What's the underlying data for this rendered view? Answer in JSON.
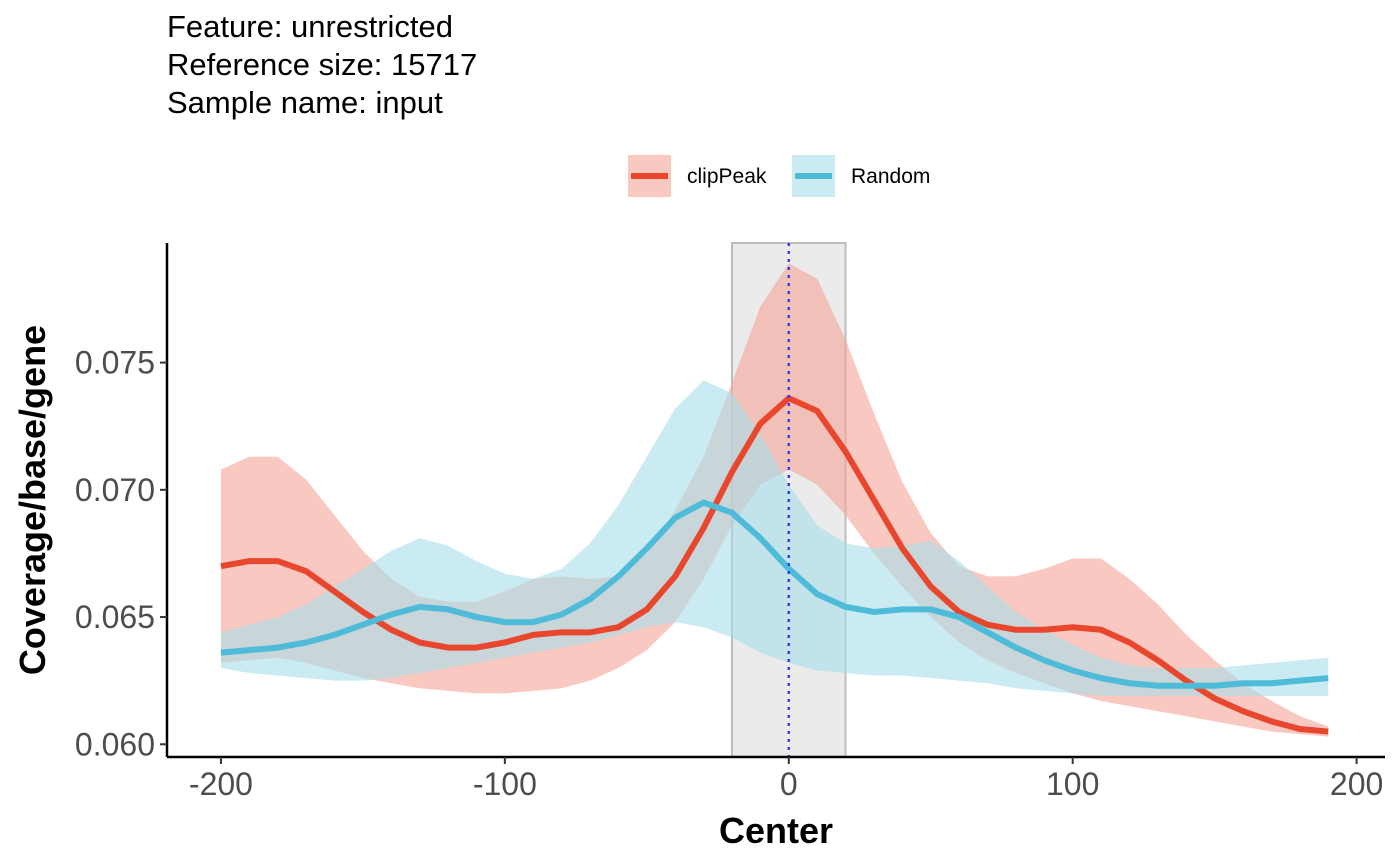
{
  "title_lines": [
    "Feature: unrestricted",
    "Reference size: 15717",
    "Sample name: input"
  ],
  "chart_data": {
    "type": "line",
    "xlabel": "Center",
    "ylabel": "Coverage/base/gene",
    "xlim": [
      -219,
      210
    ],
    "ylim": [
      0.0595,
      0.0797
    ],
    "x_ticks": [
      -200,
      -100,
      0,
      100,
      200
    ],
    "x_tick_labels": [
      "-200",
      "-100",
      "0",
      "100",
      "200"
    ],
    "y_ticks": [
      0.06,
      0.065,
      0.07,
      0.075
    ],
    "y_tick_labels": [
      "0.060",
      "0.065",
      "0.070",
      "0.075"
    ],
    "grid": false,
    "legend_position": "top",
    "center_region": [
      -20,
      20
    ],
    "center_line": 0,
    "x": [
      -200,
      -190,
      -180,
      -170,
      -160,
      -150,
      -140,
      -130,
      -120,
      -110,
      -100,
      -90,
      -80,
      -70,
      -60,
      -50,
      -40,
      -30,
      -20,
      -10,
      0,
      10,
      20,
      30,
      40,
      50,
      60,
      70,
      80,
      90,
      100,
      110,
      120,
      130,
      140,
      150,
      160,
      170,
      180,
      190
    ],
    "series": [
      {
        "name": "clipPeak",
        "color": "#E8472E",
        "band_color": "#F4A397",
        "values": [
          0.067,
          0.0672,
          0.0672,
          0.0668,
          0.066,
          0.0652,
          0.0645,
          0.064,
          0.0638,
          0.0638,
          0.064,
          0.0643,
          0.0644,
          0.0644,
          0.0646,
          0.0653,
          0.0666,
          0.0685,
          0.0707,
          0.0726,
          0.0736,
          0.0731,
          0.0715,
          0.0696,
          0.0677,
          0.0662,
          0.0652,
          0.0647,
          0.0645,
          0.0645,
          0.0646,
          0.0645,
          0.064,
          0.0633,
          0.0625,
          0.0618,
          0.0613,
          0.0609,
          0.0606,
          0.0605
        ],
        "lower": [
          0.0632,
          0.0633,
          0.0634,
          0.0632,
          0.0629,
          0.0626,
          0.0624,
          0.0622,
          0.0621,
          0.062,
          0.062,
          0.0621,
          0.0622,
          0.0625,
          0.063,
          0.0637,
          0.0648,
          0.0665,
          0.0686,
          0.0702,
          0.0708,
          0.0702,
          0.069,
          0.0675,
          0.0662,
          0.065,
          0.064,
          0.0633,
          0.0628,
          0.0624,
          0.062,
          0.0617,
          0.0615,
          0.0613,
          0.0611,
          0.0609,
          0.0607,
          0.0605,
          0.0604,
          0.0603
        ],
        "upper": [
          0.0708,
          0.0713,
          0.0713,
          0.0704,
          0.069,
          0.0676,
          0.0665,
          0.0658,
          0.0656,
          0.0656,
          0.066,
          0.0665,
          0.0666,
          0.0665,
          0.0666,
          0.0675,
          0.0692,
          0.0713,
          0.0742,
          0.0772,
          0.0789,
          0.0783,
          0.0759,
          0.073,
          0.0703,
          0.0683,
          0.067,
          0.0666,
          0.0666,
          0.0669,
          0.0673,
          0.0673,
          0.0665,
          0.0655,
          0.0643,
          0.0633,
          0.0624,
          0.0617,
          0.0611,
          0.0607
        ]
      },
      {
        "name": "Random",
        "color": "#4EBBD8",
        "band_color": "#A8DDEA",
        "values": [
          0.0636,
          0.0637,
          0.0638,
          0.064,
          0.0643,
          0.0647,
          0.0651,
          0.0654,
          0.0653,
          0.065,
          0.0648,
          0.0648,
          0.0651,
          0.0657,
          0.0666,
          0.0677,
          0.0689,
          0.0695,
          0.0691,
          0.0681,
          0.0669,
          0.0659,
          0.0654,
          0.0652,
          0.0653,
          0.0653,
          0.065,
          0.0644,
          0.0638,
          0.0633,
          0.0629,
          0.0626,
          0.0624,
          0.0623,
          0.0623,
          0.0623,
          0.0624,
          0.0624,
          0.0625,
          0.0626
        ],
        "lower": [
          0.063,
          0.0628,
          0.0627,
          0.0626,
          0.0625,
          0.0625,
          0.0626,
          0.0628,
          0.063,
          0.0632,
          0.0634,
          0.0636,
          0.0638,
          0.064,
          0.0643,
          0.0646,
          0.0648,
          0.0646,
          0.0642,
          0.0636,
          0.0632,
          0.0629,
          0.0628,
          0.0627,
          0.0627,
          0.0626,
          0.0625,
          0.0624,
          0.0622,
          0.0621,
          0.062,
          0.0619,
          0.0619,
          0.0619,
          0.0619,
          0.0619,
          0.0619,
          0.0619,
          0.0619,
          0.0619
        ],
        "upper": [
          0.0644,
          0.0647,
          0.065,
          0.0655,
          0.0662,
          0.0669,
          0.0676,
          0.0681,
          0.0678,
          0.0672,
          0.0667,
          0.0665,
          0.0669,
          0.0679,
          0.0694,
          0.0713,
          0.0732,
          0.0743,
          0.0738,
          0.0722,
          0.0702,
          0.0686,
          0.0679,
          0.0677,
          0.0678,
          0.068,
          0.0672,
          0.0662,
          0.0652,
          0.0645,
          0.0639,
          0.0634,
          0.0631,
          0.063,
          0.063,
          0.063,
          0.0631,
          0.0632,
          0.0633,
          0.0634
        ]
      }
    ]
  }
}
